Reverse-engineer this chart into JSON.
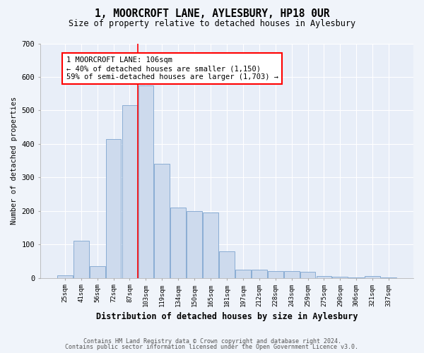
{
  "title": "1, MOORCROFT LANE, AYLESBURY, HP18 0UR",
  "subtitle": "Size of property relative to detached houses in Aylesbury",
  "xlabel": "Distribution of detached houses by size in Aylesbury",
  "ylabel": "Number of detached properties",
  "bar_color": "#cddaed",
  "bar_edge_color": "#8aadd4",
  "background_color": "#e8eef8",
  "grid_color": "#ffffff",
  "fig_background": "#f0f4fa",
  "categories": [
    "25sqm",
    "41sqm",
    "56sqm",
    "72sqm",
    "87sqm",
    "103sqm",
    "119sqm",
    "134sqm",
    "150sqm",
    "165sqm",
    "181sqm",
    "197sqm",
    "212sqm",
    "228sqm",
    "243sqm",
    "259sqm",
    "275sqm",
    "290sqm",
    "306sqm",
    "321sqm",
    "337sqm"
  ],
  "values": [
    8,
    110,
    35,
    415,
    515,
    575,
    340,
    210,
    200,
    195,
    80,
    25,
    25,
    20,
    20,
    18,
    5,
    3,
    2,
    5,
    2
  ],
  "red_line_x": 4.5,
  "annotation_text": "1 MOORCROFT LANE: 106sqm\n← 40% of detached houses are smaller (1,150)\n59% of semi-detached houses are larger (1,703) →",
  "ylim": [
    0,
    700
  ],
  "yticks": [
    0,
    100,
    200,
    300,
    400,
    500,
    600,
    700
  ],
  "footer_line1": "Contains HM Land Registry data © Crown copyright and database right 2024.",
  "footer_line2": "Contains public sector information licensed under the Open Government Licence v3.0."
}
